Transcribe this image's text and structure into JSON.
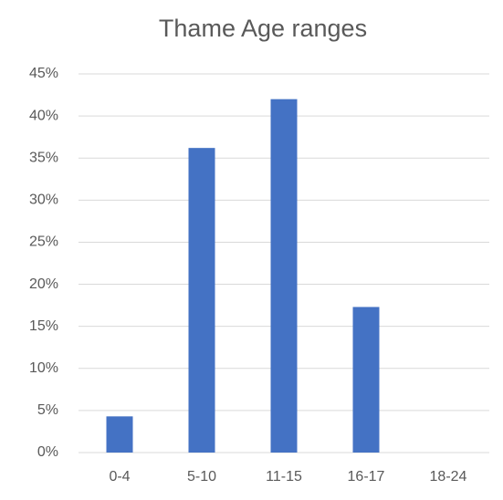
{
  "chart_data": {
    "type": "bar",
    "title": "Thame Age ranges",
    "categories": [
      "0-4",
      "5-10",
      "11-15",
      "16-17",
      "18-24"
    ],
    "values": [
      4.3,
      36.2,
      42,
      17.3,
      0
    ],
    "color": "#4472c4",
    "ylim": [
      0,
      45
    ],
    "yticks": [
      {
        "value": 0,
        "label": "0%"
      },
      {
        "value": 5,
        "label": "5%"
      },
      {
        "value": 10,
        "label": "10%"
      },
      {
        "value": 15,
        "label": "15%"
      },
      {
        "value": 20,
        "label": "20%"
      },
      {
        "value": 25,
        "label": "25%"
      },
      {
        "value": 30,
        "label": "30%"
      },
      {
        "value": 35,
        "label": "35%"
      },
      {
        "value": 40,
        "label": "40%"
      },
      {
        "value": 45,
        "label": "45%"
      }
    ],
    "grid": true
  }
}
